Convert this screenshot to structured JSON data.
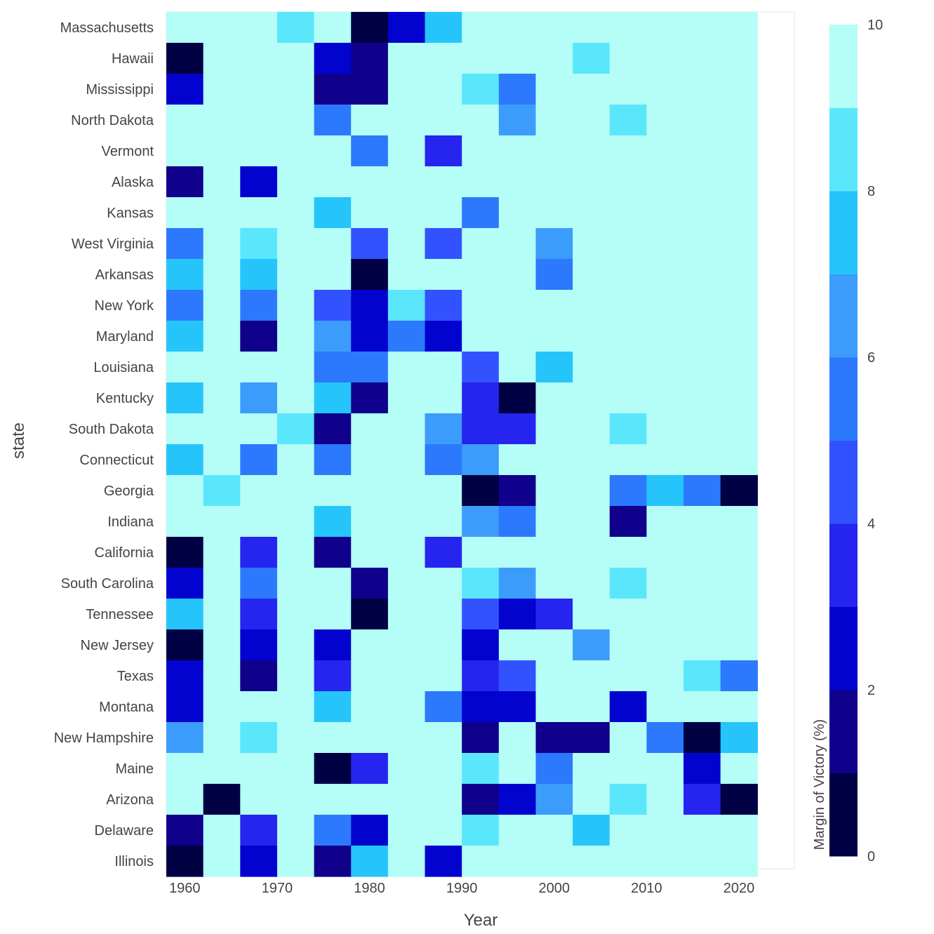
{
  "chart_data": {
    "type": "heatmap",
    "xlabel": "Year",
    "ylabel": "state",
    "x": [
      1960,
      1964,
      1968,
      1972,
      1976,
      1980,
      1984,
      1988,
      1992,
      1996,
      2000,
      2004,
      2008,
      2012,
      2016,
      2020
    ],
    "xlim": [
      1958,
      2026
    ],
    "x_ticks": [
      1960,
      1970,
      1980,
      1990,
      2000,
      2010,
      2020
    ],
    "y": [
      "Massachusetts",
      "Hawaii",
      "Mississippi",
      "North Dakota",
      "Vermont",
      "Alaska",
      "Kansas",
      "West Virginia",
      "Arkansas",
      "New York",
      "Maryland",
      "Louisiana",
      "Kentucky",
      "South Dakota",
      "Connecticut",
      "Georgia",
      "Indiana",
      "California",
      "South Carolina",
      "Tennessee",
      "New Jersey",
      "Texas",
      "Montana",
      "New Hampshire",
      "Maine",
      "Arizona",
      "Delaware",
      "Illinois"
    ],
    "z": [
      [
        10,
        10,
        10,
        8.5,
        10,
        0.2,
        2.5,
        7.5,
        10,
        10,
        10,
        10,
        10,
        10,
        10,
        10
      ],
      [
        0.1,
        10,
        10,
        10,
        2.5,
        1.5,
        10,
        10,
        10,
        10,
        10,
        8.5,
        10,
        10,
        10,
        10
      ],
      [
        2.5,
        10,
        10,
        10,
        1.5,
        1.5,
        10,
        10,
        8.5,
        5.5,
        10,
        10,
        10,
        10,
        10,
        10
      ],
      [
        10,
        10,
        10,
        10,
        5.5,
        10,
        10,
        10,
        10,
        6.5,
        10,
        10,
        8.5,
        10,
        10,
        10
      ],
      [
        10,
        10,
        10,
        10,
        10,
        5.5,
        10,
        3.5,
        10,
        10,
        10,
        10,
        10,
        10,
        10,
        10
      ],
      [
        1.5,
        10,
        2.5,
        10,
        10,
        10,
        10,
        10,
        10,
        10,
        10,
        10,
        10,
        10,
        10,
        10
      ],
      [
        10,
        10,
        10,
        10,
        7.5,
        10,
        10,
        10,
        5.5,
        10,
        10,
        10,
        10,
        10,
        10,
        10
      ],
      [
        5.5,
        10,
        8.5,
        10,
        10,
        4.5,
        10,
        4.5,
        10,
        10,
        6.5,
        10,
        10,
        10,
        10,
        10
      ],
      [
        7.5,
        10,
        7.5,
        10,
        10,
        0.2,
        10,
        10,
        10,
        10,
        5.5,
        10,
        10,
        10,
        10,
        10
      ],
      [
        5.5,
        10,
        5.5,
        10,
        4.5,
        2.5,
        8.5,
        4.5,
        10,
        10,
        10,
        10,
        10,
        10,
        10,
        10
      ],
      [
        7.5,
        10,
        1.5,
        10,
        6.5,
        2.5,
        5.5,
        2.5,
        10,
        10,
        10,
        10,
        10,
        10,
        10,
        10
      ],
      [
        10,
        10,
        10,
        10,
        5.5,
        5.5,
        10,
        10,
        4.5,
        10,
        7.5,
        10,
        10,
        10,
        10,
        10
      ],
      [
        7.5,
        10,
        6.5,
        10,
        7.5,
        1.5,
        10,
        10,
        3.5,
        0.2,
        10,
        10,
        10,
        10,
        10,
        10
      ],
      [
        10,
        10,
        10,
        8.5,
        1.5,
        10,
        10,
        6.5,
        3.5,
        3.5,
        10,
        10,
        8.5,
        10,
        10,
        10
      ],
      [
        7.5,
        10,
        5.5,
        10,
        5.5,
        10,
        10,
        5.5,
        6.5,
        10,
        10,
        10,
        10,
        10,
        10,
        10
      ],
      [
        10,
        8.5,
        10,
        10,
        10,
        10,
        10,
        10,
        0.2,
        1.5,
        10,
        10,
        5.5,
        7.5,
        5.5,
        0.2
      ],
      [
        10,
        10,
        10,
        10,
        7.5,
        10,
        10,
        10,
        6.5,
        5.5,
        10,
        10,
        1.5,
        10,
        10,
        10
      ],
      [
        0.2,
        10,
        3.5,
        10,
        1.5,
        10,
        10,
        3.5,
        10,
        10,
        10,
        10,
        10,
        10,
        10,
        10
      ],
      [
        2.5,
        10,
        5.5,
        10,
        10,
        1.5,
        10,
        10,
        8.5,
        6.5,
        10,
        10,
        8.5,
        10,
        10,
        10
      ],
      [
        7.5,
        10,
        3.5,
        10,
        10,
        0.2,
        10,
        10,
        4.5,
        2.5,
        3.5,
        10,
        10,
        10,
        10,
        10
      ],
      [
        0.2,
        10,
        2.5,
        10,
        2.5,
        10,
        10,
        10,
        2.5,
        10,
        10,
        6.5,
        10,
        10,
        10,
        10
      ],
      [
        2.5,
        10,
        1.5,
        10,
        3.5,
        10,
        10,
        10,
        3.5,
        4.5,
        10,
        10,
        10,
        10,
        8.5,
        5.5
      ],
      [
        2.5,
        10,
        10,
        10,
        7.5,
        10,
        10,
        5.5,
        2.5,
        2.5,
        10,
        10,
        2.5,
        10,
        10,
        10
      ],
      [
        6.5,
        10,
        8.5,
        10,
        10,
        10,
        10,
        10,
        1.5,
        10,
        1.5,
        1.5,
        10,
        5.5,
        0.2,
        7.5
      ],
      [
        10,
        10,
        10,
        10,
        0.2,
        3.5,
        10,
        10,
        8.5,
        10,
        5.5,
        10,
        10,
        10,
        2.5,
        10
      ],
      [
        10,
        0.2,
        10,
        10,
        10,
        10,
        10,
        10,
        1.5,
        2.5,
        6.5,
        10,
        8.5,
        10,
        3.5,
        0.2
      ],
      [
        1.5,
        10,
        3.5,
        10,
        5.5,
        2.5,
        10,
        10,
        8.5,
        10,
        10,
        7.5,
        10,
        10,
        10,
        10
      ],
      [
        0.2,
        10,
        2.5,
        10,
        1.5,
        7.5,
        10,
        2.5,
        10,
        10,
        10,
        10,
        10,
        10,
        10,
        10
      ]
    ],
    "colorbar": {
      "title": "Margin of Victory (%)",
      "range": [
        0,
        10
      ],
      "ticks": [
        0,
        2,
        4,
        6,
        8,
        10
      ],
      "bin_size": 1,
      "colors": [
        "#000044",
        "#10008c",
        "#0303d0",
        "#2525ef",
        "#3352ff",
        "#2c79fd",
        "#3c9cfc",
        "#25c5fb",
        "#5ae7fc",
        "#b4fef7"
      ]
    },
    "grid": true,
    "legend": "colorbar-right"
  }
}
